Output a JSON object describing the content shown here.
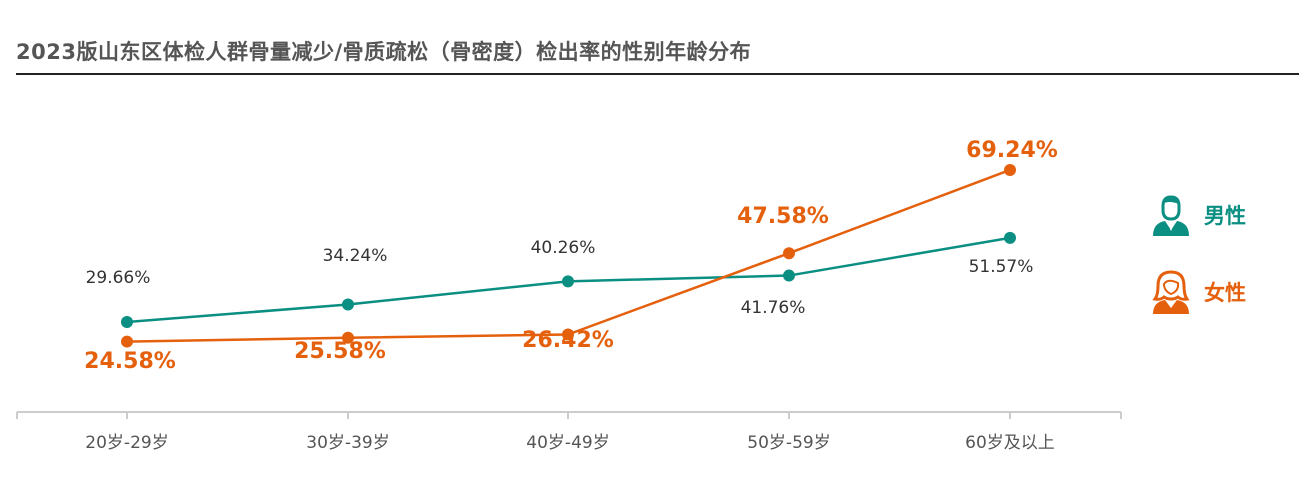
{
  "title": "2023版山东区体检人群骨量减少/骨质疏松（骨密度）检出率的性别年龄分布",
  "colors": {
    "male": "#0a8f82",
    "female": "#e5600d",
    "axis": "#cccccc",
    "tick_text": "#555555",
    "male_label": "#333333"
  },
  "chart_data": {
    "type": "line",
    "title": "2023版山东区体检人群骨量减少/骨质疏松（骨密度）检出率的性别年龄分布",
    "categories": [
      "20岁-29岁",
      "30岁-39岁",
      "40岁-49岁",
      "50岁-59岁",
      "60岁及以上"
    ],
    "series": [
      {
        "name": "男性",
        "values": [
          29.66,
          34.24,
          40.26,
          41.76,
          51.57
        ],
        "labels": [
          "29.66%",
          "34.24%",
          "40.26%",
          "41.76%",
          "51.57%"
        ]
      },
      {
        "name": "女性",
        "values": [
          24.58,
          25.58,
          26.42,
          47.58,
          69.24
        ],
        "labels": [
          "24.58%",
          "25.58%",
          "26.42%",
          "47.58%",
          "69.24%"
        ]
      }
    ],
    "ylim": [
      0,
      80
    ],
    "grid": false,
    "legend": "right"
  },
  "legend": [
    {
      "label": "男性",
      "icon": "male-person-icon"
    },
    {
      "label": "女性",
      "icon": "female-person-icon"
    }
  ]
}
